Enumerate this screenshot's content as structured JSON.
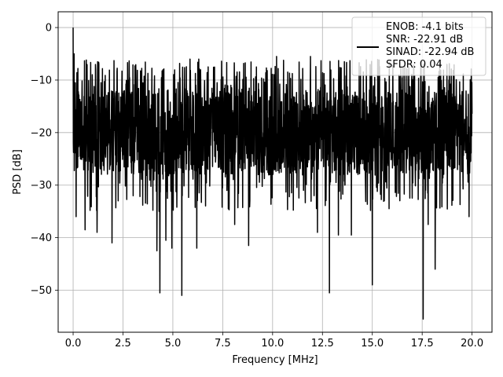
{
  "chart_data": {
    "type": "line",
    "title": "",
    "xlabel": "Frequency [MHz]",
    "ylabel": "PSD [dB]",
    "xlim": [
      -0.75,
      21.0
    ],
    "ylim": [
      -58.0,
      3.0
    ],
    "xticks": [
      0.0,
      2.5,
      5.0,
      7.5,
      10.0,
      12.5,
      15.0,
      17.5,
      20.0
    ],
    "xtick_labels": [
      "0.0",
      "2.5",
      "5.0",
      "7.5",
      "10.0",
      "12.5",
      "15.0",
      "17.5",
      "20.0"
    ],
    "yticks": [
      0,
      -10,
      -20,
      -30,
      -40,
      -50
    ],
    "ytick_labels": [
      "0",
      "−10",
      "−20",
      "−30",
      "−40",
      "−50"
    ],
    "grid": true,
    "legend_position": "top-right",
    "legend_lines": [
      "ENOB: -4.1 bits",
      "SNR: -22.91 dB",
      "SINAD: -22.94 dB",
      "SFDR: 0.04"
    ],
    "series_color": "#000000",
    "series": [
      {
        "noise_floor_db": -20,
        "upper_envelope_db": -6,
        "peaks": [
          {
            "x": 0.0,
            "y": 0.0
          },
          {
            "x": 0.05,
            "y": -5.0
          },
          {
            "x": 0.15,
            "y": -36.0
          },
          {
            "x": 0.6,
            "y": -38.5
          },
          {
            "x": 1.2,
            "y": -39.0
          },
          {
            "x": 1.95,
            "y": -41.0
          },
          {
            "x": 4.2,
            "y": -42.5
          },
          {
            "x": 4.35,
            "y": -50.5
          },
          {
            "x": 4.65,
            "y": -40.5
          },
          {
            "x": 4.95,
            "y": -42.0
          },
          {
            "x": 5.45,
            "y": -51.0
          },
          {
            "x": 6.2,
            "y": -42.0
          },
          {
            "x": 8.1,
            "y": -37.5
          },
          {
            "x": 8.8,
            "y": -41.5
          },
          {
            "x": 12.25,
            "y": -39.0
          },
          {
            "x": 12.85,
            "y": -50.5
          },
          {
            "x": 13.3,
            "y": -39.5
          },
          {
            "x": 13.95,
            "y": -39.5
          },
          {
            "x": 15.0,
            "y": -49.0
          },
          {
            "x": 17.55,
            "y": -55.5
          },
          {
            "x": 17.8,
            "y": -37.5
          },
          {
            "x": 18.15,
            "y": -46.0
          },
          {
            "x": 19.85,
            "y": -36.0
          },
          {
            "x": 6.3,
            "y": -6.0
          },
          {
            "x": 10.2,
            "y": -5.5
          },
          {
            "x": 11.9,
            "y": -5.5
          },
          {
            "x": 13.6,
            "y": -6.5
          }
        ]
      }
    ]
  }
}
